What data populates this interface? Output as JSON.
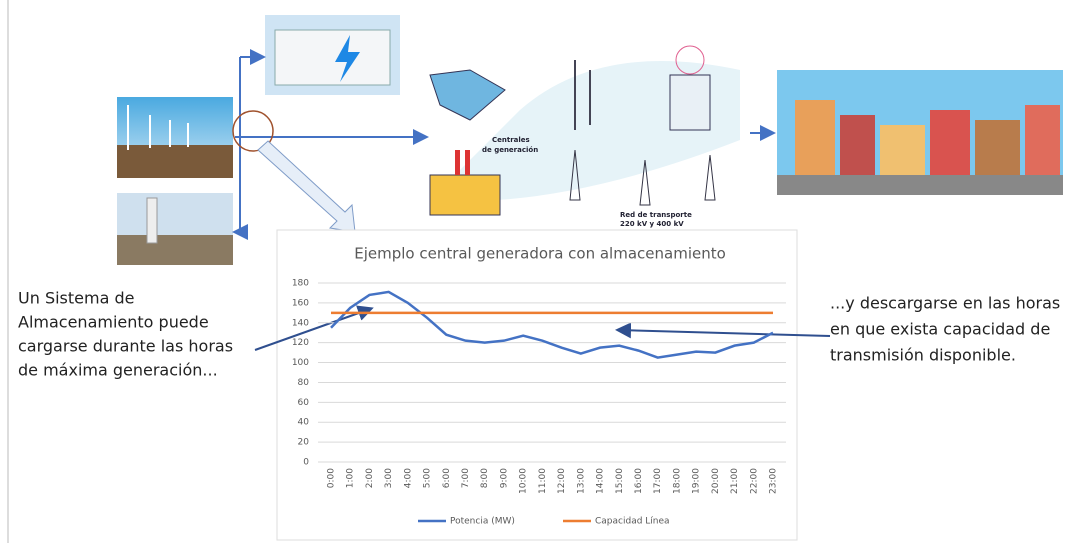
{
  "diagram": {
    "generation_label_1": "Centrales",
    "generation_label_2": "de generación",
    "grid_label_1": "Red de transporte",
    "grid_label_2": "220 kV y 400 kV"
  },
  "chart_data": {
    "type": "line",
    "title": "Ejemplo central generadora con almacenamiento",
    "categories": [
      "0:00",
      "1:00",
      "2:00",
      "3:00",
      "4:00",
      "5:00",
      "6:00",
      "7:00",
      "8:00",
      "9:00",
      "10:00",
      "11:00",
      "12:00",
      "13:00",
      "14:00",
      "15:00",
      "16:00",
      "17:00",
      "18:00",
      "19:00",
      "20:00",
      "21:00",
      "22:00",
      "23:00"
    ],
    "series": [
      {
        "name": "Potencia (MW)",
        "color": "#4472c4",
        "values": [
          135,
          155,
          168,
          171,
          160,
          145,
          128,
          122,
          120,
          122,
          127,
          122,
          115,
          109,
          115,
          117,
          112,
          105,
          108,
          111,
          110,
          117,
          120,
          130
        ]
      },
      {
        "name": "Capacidad Línea",
        "color": "#ed7d31",
        "values": [
          150,
          150,
          150,
          150,
          150,
          150,
          150,
          150,
          150,
          150,
          150,
          150,
          150,
          150,
          150,
          150,
          150,
          150,
          150,
          150,
          150,
          150,
          150,
          150
        ]
      }
    ],
    "ylim": [
      0,
      180
    ],
    "yticks": [
      0,
      20,
      40,
      60,
      80,
      100,
      120,
      140,
      160,
      180
    ],
    "grid": true,
    "annotations": {
      "left": [
        "Un Sistema de",
        "Almacenamiento puede",
        "cargarse durante las horas",
        "de máxima generación..."
      ],
      "right": [
        "...y descargarse en las horas",
        "en que exista capacidad de",
        "transmisión disponible."
      ]
    }
  }
}
